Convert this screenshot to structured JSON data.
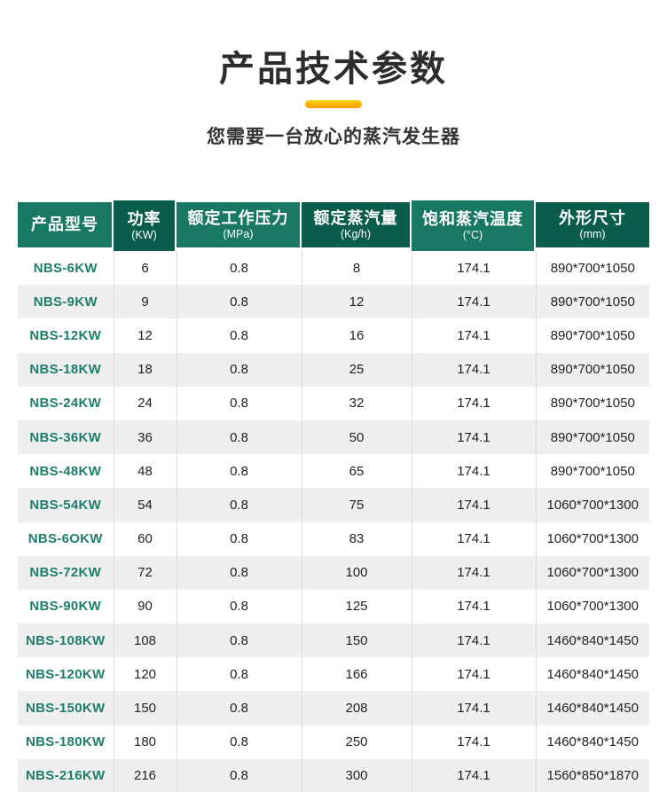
{
  "page": {
    "title": "产品技术参数",
    "subtitle": "您需要一台放心的蒸汽发生器"
  },
  "colors": {
    "header_green_light": "#187864",
    "header_green_dark": "#0A5D4C",
    "accent_yellow_top": "#FFD400",
    "accent_yellow_bottom": "#FF9E00",
    "model_text_teal": "#1D7E6C",
    "row_stripe_gray": "#EFEFEF",
    "title_text": "#2D2D2D"
  },
  "table": {
    "columns": [
      {
        "label": "产品型号",
        "unit": ""
      },
      {
        "label": "功率",
        "unit": "(KW)"
      },
      {
        "label": "额定工作压力",
        "unit": "(MPa)"
      },
      {
        "label": "额定蒸汽量",
        "unit": "(Kg/h)"
      },
      {
        "label": "饱和蒸汽温度",
        "unit": "(°C)"
      },
      {
        "label": "外形尺寸",
        "unit": "(mm)"
      }
    ],
    "rows": [
      [
        "NBS-6KW",
        "6",
        "0.8",
        "8",
        "174.1",
        "890*700*1050"
      ],
      [
        "NBS-9KW",
        "9",
        "0.8",
        "12",
        "174.1",
        "890*700*1050"
      ],
      [
        "NBS-12KW",
        "12",
        "0.8",
        "16",
        "174.1",
        "890*700*1050"
      ],
      [
        "NBS-18KW",
        "18",
        "0.8",
        "25",
        "174.1",
        "890*700*1050"
      ],
      [
        "NBS-24KW",
        "24",
        "0.8",
        "32",
        "174.1",
        "890*700*1050"
      ],
      [
        "NBS-36KW",
        "36",
        "0.8",
        "50",
        "174.1",
        "890*700*1050"
      ],
      [
        "NBS-48KW",
        "48",
        "0.8",
        "65",
        "174.1",
        "890*700*1050"
      ],
      [
        "NBS-54KW",
        "54",
        "0.8",
        "75",
        "174.1",
        "1060*700*1300"
      ],
      [
        "NBS-6OKW",
        "60",
        "0.8",
        "83",
        "174.1",
        "1060*700*1300"
      ],
      [
        "NBS-72KW",
        "72",
        "0.8",
        "100",
        "174.1",
        "1060*700*1300"
      ],
      [
        "NBS-90KW",
        "90",
        "0.8",
        "125",
        "174.1",
        "1060*700*1300"
      ],
      [
        "NBS-108KW",
        "108",
        "0.8",
        "150",
        "174.1",
        "1460*840*1450"
      ],
      [
        "NBS-120KW",
        "120",
        "0.8",
        "166",
        "174.1",
        "1460*840*1450"
      ],
      [
        "NBS-150KW",
        "150",
        "0.8",
        "208",
        "174.1",
        "1460*840*1450"
      ],
      [
        "NBS-180KW",
        "180",
        "0.8",
        "250",
        "174.1",
        "1460*840*1450"
      ],
      [
        "NBS-216KW",
        "216",
        "0.8",
        "300",
        "174.1",
        "1560*850*1870"
      ]
    ]
  }
}
